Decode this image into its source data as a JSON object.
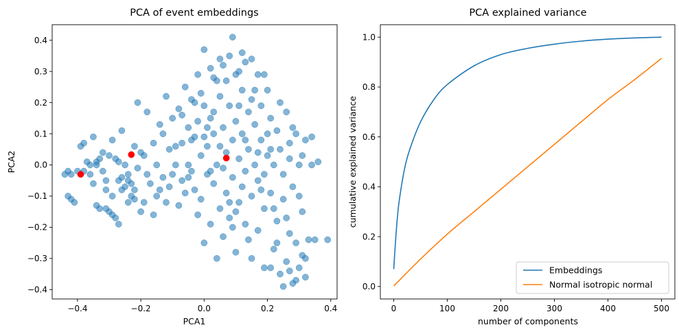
{
  "chart_data": [
    {
      "type": "scatter",
      "title": "PCA of event embeddings",
      "xlabel": "PCA1",
      "ylabel": "PCA2",
      "xlim": [
        -0.48,
        0.42
      ],
      "ylim": [
        -0.43,
        0.45
      ],
      "xticks": [
        -0.4,
        -0.2,
        0.0,
        0.2,
        0.4
      ],
      "xtick_labels": [
        "−0.4",
        "−0.2",
        "0.0",
        "0.2",
        "0.4"
      ],
      "yticks": [
        -0.4,
        -0.3,
        -0.2,
        -0.1,
        0.0,
        0.1,
        0.2,
        0.3,
        0.4
      ],
      "ytick_labels": [
        "−0.4",
        "−0.3",
        "−0.2",
        "−0.1",
        "0.0",
        "0.1",
        "0.2",
        "0.3",
        "0.4"
      ],
      "grid": false,
      "series": [
        {
          "color": "#1f77b4",
          "alpha": 0.55,
          "points": [
            [
              -0.44,
              -0.03
            ],
            [
              -0.43,
              -0.02
            ],
            [
              -0.43,
              -0.1
            ],
            [
              -0.42,
              -0.11
            ],
            [
              -0.42,
              -0.03
            ],
            [
              -0.41,
              -0.12
            ],
            [
              -0.38,
              -0.02
            ],
            [
              -0.38,
              0.07
            ],
            [
              -0.37,
              0.01
            ],
            [
              -0.36,
              -0.03
            ],
            [
              -0.36,
              0.0
            ],
            [
              -0.35,
              0.09
            ],
            [
              -0.35,
              -0.06
            ],
            [
              -0.34,
              0.01
            ],
            [
              -0.34,
              -0.13
            ],
            [
              -0.33,
              -0.14
            ],
            [
              -0.33,
              0.02
            ],
            [
              -0.32,
              -0.02
            ],
            [
              -0.32,
              0.04
            ],
            [
              -0.31,
              -0.05
            ],
            [
              -0.31,
              -0.14
            ],
            [
              -0.3,
              0.03
            ],
            [
              -0.3,
              -0.15
            ],
            [
              -0.29,
              0.08
            ],
            [
              -0.29,
              -0.16
            ],
            [
              -0.28,
              0.02
            ],
            [
              -0.28,
              -0.17
            ],
            [
              -0.27,
              -0.19
            ],
            [
              -0.27,
              -0.05
            ],
            [
              -0.26,
              0.11
            ],
            [
              -0.26,
              -0.04
            ],
            [
              -0.25,
              0.0
            ],
            [
              -0.25,
              -0.07
            ],
            [
              -0.24,
              -0.12
            ],
            [
              -0.24,
              -0.03
            ],
            [
              -0.23,
              -0.06
            ],
            [
              -0.23,
              -0.1
            ],
            [
              -0.22,
              0.06
            ],
            [
              -0.22,
              -0.08
            ],
            [
              -0.21,
              0.2
            ],
            [
              -0.2,
              0.04
            ],
            [
              -0.2,
              -0.15
            ],
            [
              -0.19,
              -0.12
            ],
            [
              -0.18,
              0.17
            ],
            [
              -0.18,
              -0.03
            ],
            [
              -0.17,
              -0.06
            ],
            [
              -0.16,
              -0.16
            ],
            [
              -0.15,
              0.0
            ],
            [
              -0.15,
              -0.1
            ],
            [
              -0.14,
              0.13
            ],
            [
              -0.13,
              0.1
            ],
            [
              -0.13,
              -0.04
            ],
            [
              -0.12,
              0.22
            ],
            [
              -0.12,
              -0.12
            ],
            [
              -0.11,
              0.05
            ],
            [
              -0.11,
              -0.07
            ],
            [
              -0.1,
              0.15
            ],
            [
              -0.1,
              -0.03
            ],
            [
              -0.09,
              0.0
            ],
            [
              -0.08,
              0.18
            ],
            [
              -0.08,
              -0.13
            ],
            [
              -0.07,
              0.07
            ],
            [
              -0.07,
              -0.05
            ],
            [
              -0.06,
              0.25
            ],
            [
              -0.06,
              -0.09
            ],
            [
              -0.05,
              0.12
            ],
            [
              -0.05,
              0.0
            ],
            [
              -0.04,
              0.21
            ],
            [
              -0.04,
              -0.02
            ],
            [
              -0.03,
              0.09
            ],
            [
              -0.03,
              -0.08
            ],
            [
              -0.02,
              0.29
            ],
            [
              -0.02,
              0.14
            ],
            [
              -0.02,
              -0.16
            ],
            [
              -0.01,
              0.03
            ],
            [
              -0.01,
              -0.11
            ],
            [
              0.0,
              0.37
            ],
            [
              0.0,
              0.19
            ],
            [
              0.0,
              -0.25
            ],
            [
              0.01,
              0.06
            ],
            [
              0.01,
              -0.03
            ],
            [
              0.02,
              0.31
            ],
            [
              0.02,
              0.15
            ],
            [
              0.02,
              -0.19
            ],
            [
              0.03,
              0.1
            ],
            [
              0.03,
              -0.06
            ],
            [
              0.04,
              0.27
            ],
            [
              0.04,
              0.0
            ],
            [
              0.04,
              -0.3
            ],
            [
              0.05,
              0.22
            ],
            [
              0.05,
              -0.14
            ],
            [
              0.06,
              0.32
            ],
            [
              0.06,
              0.12
            ],
            [
              0.06,
              -0.23
            ],
            [
              0.07,
              0.04
            ],
            [
              0.07,
              -0.09
            ],
            [
              0.08,
              0.35
            ],
            [
              0.08,
              0.19
            ],
            [
              0.08,
              -0.17
            ],
            [
              0.09,
              0.41
            ],
            [
              0.09,
              0.08
            ],
            [
              0.09,
              -0.04
            ],
            [
              0.1,
              0.29
            ],
            [
              0.1,
              0.14
            ],
            [
              0.1,
              -0.28
            ],
            [
              0.11,
              0.02
            ],
            [
              0.11,
              -0.12
            ],
            [
              0.12,
              0.24
            ],
            [
              0.12,
              0.1
            ],
            [
              0.12,
              -0.07
            ],
            [
              0.13,
              0.33
            ],
            [
              0.13,
              -0.02
            ],
            [
              0.13,
              -0.19
            ],
            [
              0.14,
              0.17
            ],
            [
              0.14,
              0.05
            ],
            [
              0.15,
              0.21
            ],
            [
              0.15,
              -0.1
            ],
            [
              0.15,
              -0.3
            ],
            [
              0.16,
              0.13
            ],
            [
              0.16,
              0.0
            ],
            [
              0.17,
              0.29
            ],
            [
              0.17,
              -0.05
            ],
            [
              0.17,
              -0.21
            ],
            [
              0.18,
              0.19
            ],
            [
              0.18,
              0.08
            ],
            [
              0.19,
              -0.14
            ],
            [
              0.19,
              -0.33
            ],
            [
              0.2,
              0.24
            ],
            [
              0.2,
              0.03
            ],
            [
              0.21,
              0.15
            ],
            [
              0.21,
              -0.09
            ],
            [
              0.22,
              -0.27
            ],
            [
              0.22,
              0.0
            ],
            [
              0.23,
              0.11
            ],
            [
              0.23,
              -0.18
            ],
            [
              0.24,
              0.05
            ],
            [
              0.24,
              -0.35
            ],
            [
              0.25,
              -0.03
            ],
            [
              0.25,
              -0.11
            ],
            [
              0.26,
              0.17
            ],
            [
              0.26,
              -0.31
            ],
            [
              0.27,
              0.02
            ],
            [
              0.27,
              -0.22
            ],
            [
              0.28,
              -0.38
            ],
            [
              0.28,
              -0.07
            ],
            [
              0.29,
              0.1
            ],
            [
              0.29,
              -0.25
            ],
            [
              0.3,
              -0.33
            ],
            [
              0.3,
              0.0
            ],
            [
              0.31,
              -0.29
            ],
            [
              0.31,
              -0.15
            ],
            [
              0.32,
              0.08
            ],
            [
              0.32,
              -0.36
            ],
            [
              0.33,
              -0.24
            ],
            [
              0.34,
              0.0
            ],
            [
              0.35,
              -0.24
            ],
            [
              0.36,
              0.01
            ],
            [
              0.39,
              -0.24
            ],
            [
              -0.27,
              0.01
            ],
            [
              -0.26,
              -0.08
            ],
            [
              -0.21,
              -0.01
            ],
            [
              -0.19,
              0.03
            ],
            [
              -0.16,
              0.07
            ],
            [
              -0.14,
              -0.08
            ],
            [
              -0.09,
              0.06
            ],
            [
              -0.07,
              0.16
            ],
            [
              -0.04,
              0.08
            ],
            [
              -0.01,
              0.23
            ],
            [
              0.01,
              0.12
            ],
            [
              0.03,
              0.17
            ],
            [
              0.05,
              0.06
            ],
            [
              0.07,
              0.27
            ],
            [
              0.09,
              -0.2
            ],
            [
              0.11,
              0.19
            ],
            [
              0.13,
              0.08
            ],
            [
              0.14,
              -0.24
            ],
            [
              0.16,
              0.24
            ],
            [
              0.18,
              -0.08
            ],
            [
              0.2,
              0.1
            ],
            [
              0.22,
              -0.14
            ],
            [
              0.24,
              0.2
            ],
            [
              0.26,
              -0.17
            ],
            [
              0.28,
              0.12
            ],
            [
              0.3,
              -0.1
            ],
            [
              0.32,
              -0.3
            ],
            [
              0.27,
              -0.34
            ],
            [
              0.25,
              -0.39
            ],
            [
              0.29,
              -0.37
            ],
            [
              0.21,
              -0.33
            ],
            [
              0.23,
              -0.25
            ],
            [
              0.19,
              0.29
            ],
            [
              0.15,
              0.34
            ],
            [
              0.12,
              0.36
            ],
            [
              0.11,
              0.3
            ],
            [
              0.05,
              0.34
            ],
            [
              0.03,
              0.28
            ],
            [
              -0.03,
              0.2
            ],
            [
              0.0,
              0.09
            ],
            [
              0.06,
              -0.01
            ],
            [
              0.08,
              -0.12
            ],
            [
              0.1,
              -0.15
            ],
            [
              0.02,
              -0.02
            ],
            [
              -0.05,
              -0.04
            ],
            [
              0.17,
              0.04
            ],
            [
              0.19,
              -0.03
            ],
            [
              0.21,
              0.05
            ],
            [
              0.27,
              0.07
            ],
            [
              0.31,
              0.03
            ],
            [
              0.34,
              0.09
            ],
            [
              -0.31,
              -0.08
            ],
            [
              -0.29,
              -0.1
            ],
            [
              -0.24,
              -0.05
            ],
            [
              -0.22,
              -0.11
            ],
            [
              -0.34,
              0.0
            ],
            [
              -0.39,
              0.06
            ],
            [
              -0.4,
              -0.02
            ]
          ]
        },
        {
          "color": "#ff0000",
          "alpha": 1,
          "points": [
            [
              -0.39,
              -0.03
            ],
            [
              -0.23,
              0.033
            ],
            [
              0.07,
              0.022
            ]
          ]
        }
      ]
    },
    {
      "type": "line",
      "title": "PCA explained variance",
      "xlabel": "number of components",
      "ylabel": "cumulative explained variance",
      "xlim": [
        -25,
        525
      ],
      "ylim": [
        -0.05,
        1.05
      ],
      "xticks": [
        0,
        100,
        200,
        300,
        400,
        500
      ],
      "xtick_labels": [
        "0",
        "100",
        "200",
        "300",
        "400",
        "500"
      ],
      "yticks": [
        0.0,
        0.2,
        0.4,
        0.6,
        0.8,
        1.0
      ],
      "ytick_labels": [
        "0.0",
        "0.2",
        "0.4",
        "0.6",
        "0.8",
        "1.0"
      ],
      "grid": false,
      "legend_position": "lower-right",
      "series": [
        {
          "name": "Embeddings",
          "color": "#1f77b4",
          "x": [
            0,
            5,
            10,
            20,
            30,
            50,
            75,
            100,
            150,
            200,
            250,
            300,
            350,
            400,
            450,
            500
          ],
          "values": [
            0.07,
            0.23,
            0.34,
            0.47,
            0.55,
            0.66,
            0.75,
            0.81,
            0.885,
            0.93,
            0.955,
            0.972,
            0.984,
            0.992,
            0.997,
            1.0
          ]
        },
        {
          "name": "Normal isotropic normal",
          "color": "#ff7f0e",
          "x": [
            0,
            50,
            100,
            150,
            200,
            250,
            300,
            350,
            400,
            450,
            500
          ],
          "values": [
            0.002,
            0.11,
            0.21,
            0.3,
            0.39,
            0.48,
            0.57,
            0.66,
            0.75,
            0.83,
            0.915
          ]
        }
      ]
    }
  ]
}
